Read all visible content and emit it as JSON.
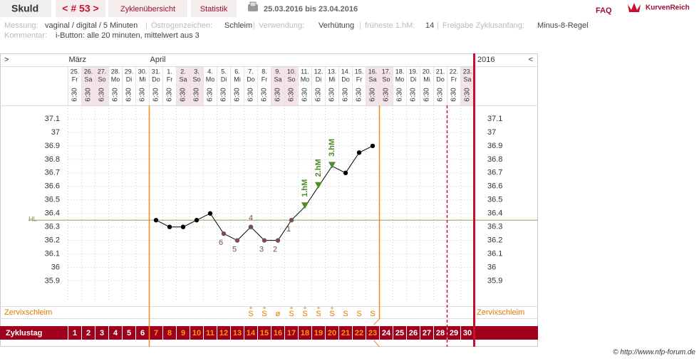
{
  "header": {
    "user": "Skuld",
    "cycle_nav": "< # 53 >",
    "tabs": [
      "Zyklenübersicht",
      "Statistik"
    ],
    "date_range": "25.03.2016 bis 23.04.2016",
    "faq": "FAQ",
    "logo": "KurvenReich"
  },
  "info": {
    "separator": "|",
    "fields": [
      {
        "label": "Messung:",
        "value": "vaginal / digital / 5 Minuten"
      },
      {
        "label": "Östrogenzeichen:",
        "value": "Schleim"
      },
      {
        "label": "Verwendung:",
        "value": "Verhütung"
      },
      {
        "label": "früheste 1.hM:",
        "value": "14"
      },
      {
        "label": "Freigabe Zyklusanfang:",
        "value": "Minus-8-Regel"
      }
    ],
    "comment": {
      "label": "Kommentar:",
      "value": "i-Button: alle 20 minuten, mittelwert aus 3"
    }
  },
  "chart_data": {
    "type": "line",
    "nav_left": ">",
    "nav_right": "<",
    "year": "2016",
    "month_labels": [
      "März",
      null,
      null,
      null,
      null,
      null,
      "April",
      null,
      null,
      null,
      null,
      null,
      null,
      null,
      null,
      null,
      null,
      null,
      null,
      null,
      null,
      null,
      null,
      null,
      null,
      null,
      null,
      null,
      null,
      null
    ],
    "dates": [
      "25.",
      "26.",
      "27.",
      "28.",
      "29.",
      "30.",
      "31.",
      "1.",
      "2.",
      "3.",
      "4.",
      "5.",
      "6.",
      "7.",
      "8.",
      "9.",
      "10.",
      "11.",
      "12.",
      "13.",
      "14.",
      "15.",
      "16.",
      "17.",
      "18.",
      "19.",
      "20.",
      "21.",
      "22.",
      "23."
    ],
    "weekdays": [
      "Fr",
      "Sa",
      "So",
      "Mo",
      "Di",
      "Mi",
      "Do",
      "Fr",
      "Sa",
      "So",
      "Mo",
      "Di",
      "Mi",
      "Do",
      "Fr",
      "Sa",
      "So",
      "Mo",
      "Di",
      "Mi",
      "Do",
      "Fr",
      "Sa",
      "So",
      "Mo",
      "Di",
      "Mi",
      "Do",
      "Fr",
      "Sa"
    ],
    "times": [
      "6:30",
      "6:30",
      "6:30",
      "6:30",
      "6:30",
      "6:30",
      "6:30",
      "6:30",
      "6:30",
      "6:30",
      "6:30",
      "6:30",
      "6:30",
      "6:30",
      "6:30",
      "6:30",
      "6:30",
      "6:30",
      "6:30",
      "6:30",
      "6:30",
      "6:30",
      "6:30",
      "6:30",
      "6:30",
      "6:30",
      "6:30",
      "6:30",
      "6:30",
      "6:30"
    ],
    "x_label": "Zyklustag",
    "x": [
      1,
      2,
      3,
      4,
      5,
      6,
      7,
      8,
      9,
      10,
      11,
      12,
      13,
      14,
      15,
      16,
      17,
      18,
      19,
      20,
      21,
      22,
      23,
      24,
      25,
      26,
      27,
      28,
      29,
      30
    ],
    "xlim": [
      0.5,
      30.5
    ],
    "values": [
      null,
      null,
      null,
      null,
      null,
      null,
      36.35,
      36.3,
      36.3,
      36.35,
      36.4,
      36.25,
      36.2,
      36.3,
      36.2,
      36.2,
      36.35,
      36.45,
      36.6,
      36.75,
      36.7,
      36.85,
      36.9,
      null,
      null,
      null,
      null,
      null,
      null,
      null
    ],
    "color": "#000000",
    "point_labels": [
      null,
      null,
      null,
      null,
      null,
      null,
      null,
      null,
      null,
      null,
      null,
      "6",
      "5",
      "4",
      "3",
      "2",
      "1",
      null,
      null,
      null,
      null,
      null,
      null,
      null,
      null,
      null,
      null,
      null,
      null,
      null
    ],
    "hm_labels": [
      null,
      null,
      null,
      null,
      null,
      null,
      null,
      null,
      null,
      null,
      null,
      null,
      null,
      null,
      null,
      null,
      null,
      "1.hM",
      "2.hM",
      "3.hM",
      null,
      null,
      null,
      null,
      null,
      null,
      null,
      null,
      null,
      null
    ],
    "hl": 36.35,
    "hl_label": "HL",
    "mucus_label": "Zervixschleim",
    "mucus": [
      null,
      null,
      null,
      null,
      null,
      null,
      null,
      null,
      null,
      null,
      null,
      null,
      null,
      "S",
      "S",
      "ø",
      "S",
      "S",
      "S",
      "S",
      "S",
      "S",
      "S",
      null,
      null,
      null,
      null,
      null,
      null,
      null
    ],
    "mucus_plus": [
      null,
      null,
      null,
      null,
      null,
      null,
      null,
      null,
      null,
      null,
      null,
      null,
      null,
      "+",
      "+",
      null,
      "+",
      "+",
      "+",
      "+",
      null,
      null,
      null,
      null,
      null,
      null,
      null,
      null,
      null,
      null
    ],
    "ylim": [
      35.75,
      37.2
    ],
    "yticks": [
      35.9,
      36,
      36.1,
      36.2,
      36.3,
      36.4,
      36.5,
      36.6,
      36.7,
      36.8,
      36.9,
      37,
      37.1
    ],
    "grid": true
  },
  "footer": "© http://www.nfp-forum.de"
}
